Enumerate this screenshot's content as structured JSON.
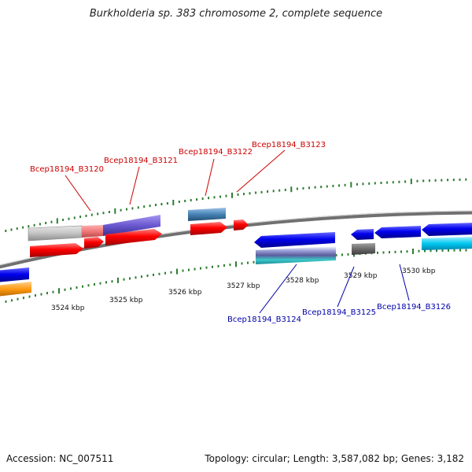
{
  "title": "Burkholderia sp. 383 chromosome 2, complete sequence",
  "footer": {
    "accession": "Accession: NC_007511",
    "topology": "Topology: circular; Length: 3,587,082 bp; Genes: 3,182"
  },
  "colors": {
    "forward_label": "#cc0000",
    "reverse_label": "#0000aa",
    "tick": "#2e7d32",
    "backbone": "#808080"
  },
  "scale_labels": [
    "3524 kbp",
    "3525 kbp",
    "3526 kbp",
    "3527 kbp",
    "3528 kbp",
    "3529 kbp",
    "3530 kbp"
  ],
  "gene_labels": {
    "forward": [
      "Bcep18194_B3120",
      "Bcep18194_B3121",
      "Bcep18194_B3122",
      "Bcep18194_B3123"
    ],
    "reverse": [
      "Bcep18194_B3124",
      "Bcep18194_B3125",
      "Bcep18194_B3126"
    ]
  }
}
